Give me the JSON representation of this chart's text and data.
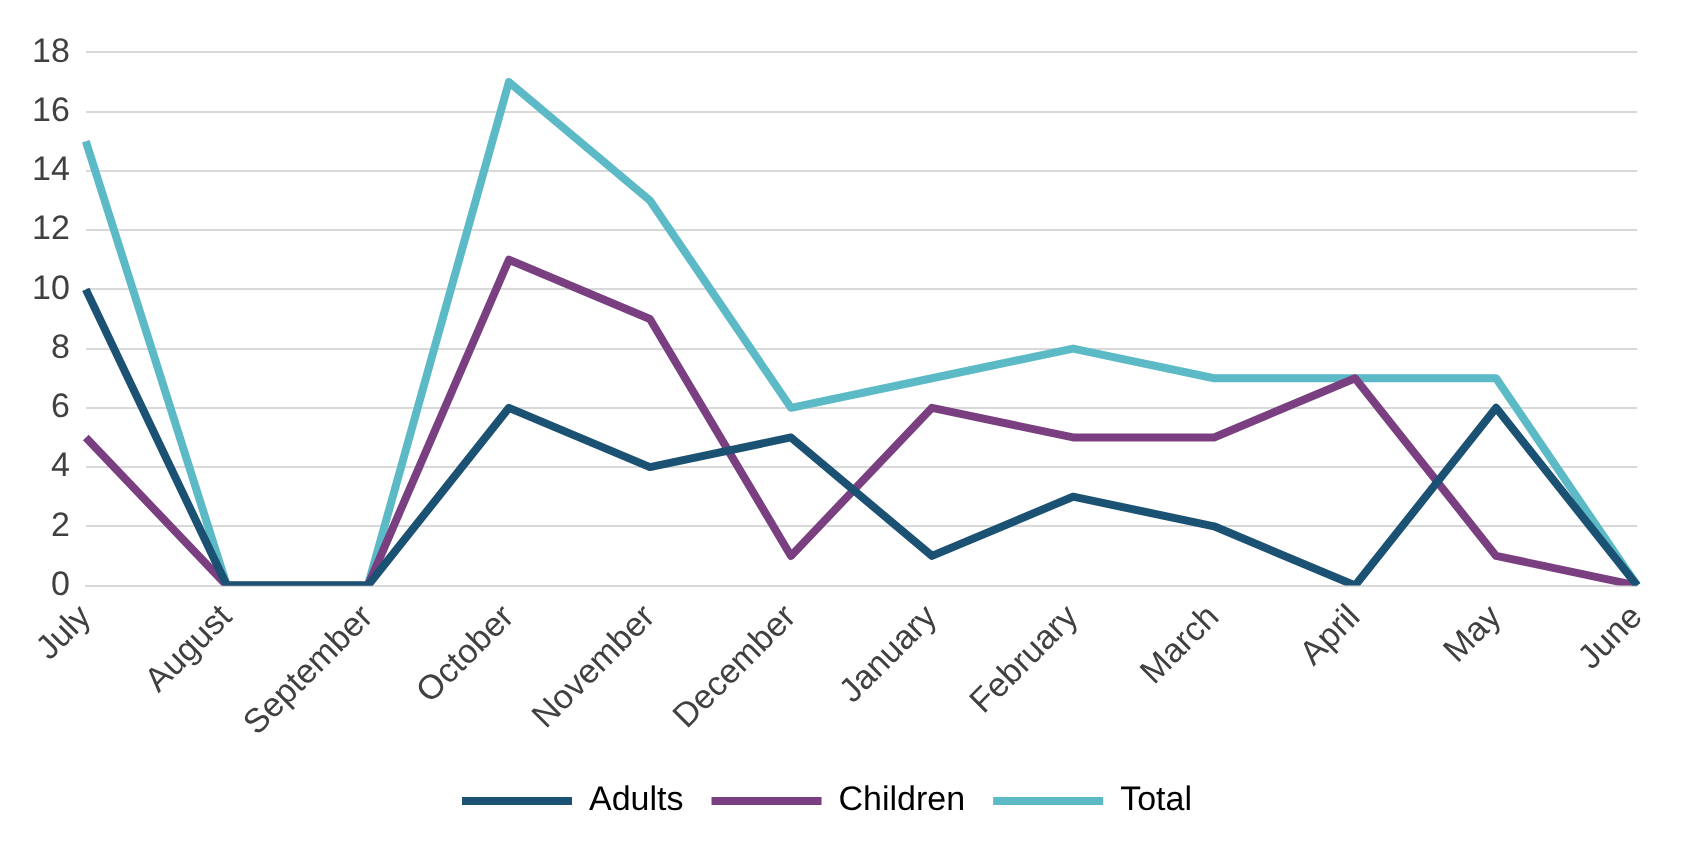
{
  "chart_data": {
    "type": "line",
    "categories": [
      "July",
      "August",
      "September",
      "October",
      "November",
      "December",
      "January",
      "February",
      "March",
      "April",
      "May",
      "June"
    ],
    "series": [
      {
        "name": "Adults",
        "color": "#1b5172",
        "values": [
          10,
          0,
          0,
          6,
          4,
          5,
          1,
          3,
          2,
          0,
          6,
          0
        ]
      },
      {
        "name": "Children",
        "color": "#7a3f80",
        "values": [
          5,
          0,
          0,
          11,
          9,
          1,
          6,
          5,
          5,
          7,
          1,
          0
        ]
      },
      {
        "name": "Total",
        "color": "#5bbac6",
        "values": [
          15,
          0,
          0,
          17,
          13,
          6,
          7,
          8,
          7,
          7,
          7,
          0
        ]
      }
    ],
    "ylim": [
      0,
      18
    ],
    "yticks": [
      0,
      2,
      4,
      6,
      8,
      10,
      12,
      14,
      16,
      18
    ],
    "grid": "y",
    "legend": "bottom",
    "marker": "none",
    "line_style": "solid"
  }
}
